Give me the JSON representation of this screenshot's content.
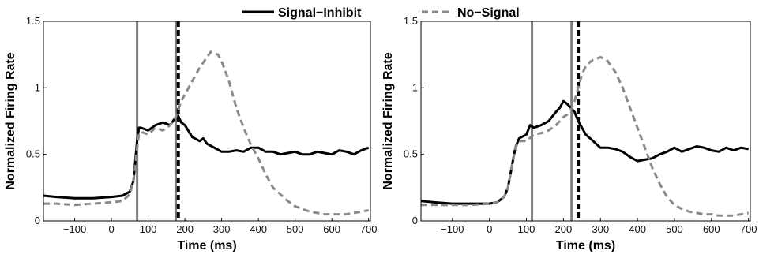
{
  "legend": {
    "entries": [
      {
        "label": "Signal−Inhibit",
        "color": "#000000",
        "style": "solid"
      },
      {
        "label": "No−Signal",
        "color": "#8a8a8a",
        "style": "dashed"
      }
    ],
    "placement": "top-center"
  },
  "chart_data": [
    {
      "type": "line",
      "xlabel": "Time (ms)",
      "ylabel": "Normalized Firing Rate",
      "xlim": [
        -185,
        705
      ],
      "ylim": [
        0,
        1.5
      ],
      "xticks": [
        "−100",
        "0",
        "100",
        "200",
        "300",
        "400",
        "500",
        "600",
        "700"
      ],
      "xtick_values": [
        -100,
        0,
        100,
        200,
        300,
        400,
        500,
        600,
        700
      ],
      "yticks": [
        "0",
        "0.5",
        "1",
        "1.5"
      ],
      "ytick_values": [
        0,
        0.5,
        1,
        1.5
      ],
      "grid": false,
      "vlines": [
        {
          "x": 70,
          "color": "#7f7f7f",
          "style": "solid"
        },
        {
          "x": 175,
          "color": "#7f7f7f",
          "style": "solid"
        },
        {
          "x": 182,
          "color": "#000000",
          "style": "dashed"
        }
      ],
      "series": [
        {
          "name": "Signal−Inhibit",
          "color": "#000000",
          "style": "solid",
          "x": [
            -185,
            -150,
            -100,
            -50,
            0,
            30,
            50,
            60,
            65,
            70,
            75,
            80,
            100,
            120,
            140,
            160,
            175,
            180,
            190,
            200,
            220,
            240,
            250,
            260,
            280,
            300,
            320,
            340,
            360,
            380,
            400,
            420,
            440,
            460,
            480,
            500,
            520,
            540,
            560,
            580,
            600,
            620,
            640,
            660,
            680,
            700
          ],
          "y": [
            0.19,
            0.18,
            0.17,
            0.17,
            0.18,
            0.19,
            0.22,
            0.3,
            0.45,
            0.6,
            0.7,
            0.7,
            0.68,
            0.72,
            0.74,
            0.72,
            0.78,
            0.8,
            0.74,
            0.72,
            0.63,
            0.6,
            0.62,
            0.58,
            0.55,
            0.52,
            0.52,
            0.53,
            0.52,
            0.55,
            0.55,
            0.52,
            0.52,
            0.5,
            0.51,
            0.52,
            0.5,
            0.5,
            0.52,
            0.51,
            0.5,
            0.53,
            0.52,
            0.5,
            0.53,
            0.55
          ]
        },
        {
          "name": "No−Signal",
          "color": "#8a8a8a",
          "style": "dashed",
          "x": [
            -185,
            -150,
            -100,
            -50,
            0,
            30,
            50,
            60,
            65,
            70,
            75,
            80,
            100,
            120,
            140,
            160,
            175,
            190,
            200,
            220,
            240,
            260,
            270,
            280,
            290,
            300,
            320,
            340,
            360,
            380,
            400,
            420,
            440,
            460,
            480,
            500,
            520,
            540,
            560,
            580,
            600,
            620,
            640,
            660,
            680,
            700
          ],
          "y": [
            0.13,
            0.13,
            0.12,
            0.13,
            0.14,
            0.15,
            0.2,
            0.3,
            0.42,
            0.55,
            0.65,
            0.67,
            0.65,
            0.7,
            0.68,
            0.72,
            0.78,
            0.9,
            0.95,
            1.05,
            1.15,
            1.23,
            1.27,
            1.26,
            1.25,
            1.2,
            1.05,
            0.85,
            0.7,
            0.57,
            0.47,
            0.35,
            0.25,
            0.2,
            0.15,
            0.11,
            0.09,
            0.07,
            0.06,
            0.05,
            0.05,
            0.05,
            0.05,
            0.06,
            0.07,
            0.08
          ]
        }
      ]
    },
    {
      "type": "line",
      "xlabel": "Time (ms)",
      "ylabel": "Normalized Firing Rate",
      "xlim": [
        -185,
        705
      ],
      "ylim": [
        0,
        1.5
      ],
      "xticks": [
        "−100",
        "0",
        "100",
        "200",
        "300",
        "400",
        "500",
        "600",
        "700"
      ],
      "xtick_values": [
        -100,
        0,
        100,
        200,
        300,
        400,
        500,
        600,
        700
      ],
      "yticks": [
        "0",
        "0.5",
        "1",
        "1.5"
      ],
      "ytick_values": [
        0,
        0.5,
        1,
        1.5
      ],
      "grid": false,
      "vlines": [
        {
          "x": 115,
          "color": "#7f7f7f",
          "style": "solid"
        },
        {
          "x": 222,
          "color": "#7f7f7f",
          "style": "solid"
        },
        {
          "x": 240,
          "color": "#000000",
          "style": "dashed"
        }
      ],
      "series": [
        {
          "name": "Signal−Inhibit",
          "color": "#000000",
          "style": "solid",
          "x": [
            -185,
            -150,
            -100,
            -50,
            0,
            20,
            40,
            50,
            60,
            70,
            80,
            100,
            110,
            120,
            140,
            160,
            180,
            190,
            200,
            210,
            220,
            230,
            240,
            250,
            260,
            280,
            300,
            320,
            340,
            360,
            380,
            400,
            420,
            440,
            460,
            480,
            500,
            520,
            540,
            560,
            580,
            600,
            620,
            640,
            660,
            680,
            700
          ],
          "y": [
            0.15,
            0.14,
            0.13,
            0.13,
            0.13,
            0.14,
            0.18,
            0.25,
            0.4,
            0.55,
            0.62,
            0.65,
            0.72,
            0.7,
            0.72,
            0.75,
            0.82,
            0.85,
            0.9,
            0.88,
            0.85,
            0.82,
            0.75,
            0.7,
            0.65,
            0.6,
            0.55,
            0.55,
            0.54,
            0.52,
            0.48,
            0.45,
            0.46,
            0.47,
            0.5,
            0.52,
            0.55,
            0.52,
            0.54,
            0.56,
            0.55,
            0.53,
            0.52,
            0.55,
            0.53,
            0.55,
            0.54
          ]
        },
        {
          "name": "No−Signal",
          "color": "#8a8a8a",
          "style": "dashed",
          "x": [
            -185,
            -150,
            -100,
            -50,
            0,
            20,
            40,
            50,
            60,
            70,
            80,
            100,
            120,
            140,
            160,
            180,
            200,
            210,
            220,
            230,
            240,
            250,
            260,
            270,
            280,
            290,
            300,
            310,
            320,
            340,
            360,
            380,
            400,
            420,
            440,
            460,
            480,
            500,
            520,
            540,
            560,
            580,
            600,
            620,
            640,
            660,
            680,
            700
          ],
          "y": [
            0.12,
            0.12,
            0.12,
            0.12,
            0.13,
            0.14,
            0.18,
            0.25,
            0.4,
            0.55,
            0.6,
            0.6,
            0.65,
            0.66,
            0.68,
            0.72,
            0.78,
            0.8,
            0.83,
            0.9,
            1.0,
            1.1,
            1.16,
            1.19,
            1.21,
            1.22,
            1.23,
            1.22,
            1.2,
            1.12,
            1.0,
            0.85,
            0.7,
            0.55,
            0.4,
            0.28,
            0.18,
            0.12,
            0.09,
            0.07,
            0.06,
            0.05,
            0.05,
            0.04,
            0.04,
            0.04,
            0.05,
            0.06
          ]
        }
      ]
    }
  ]
}
